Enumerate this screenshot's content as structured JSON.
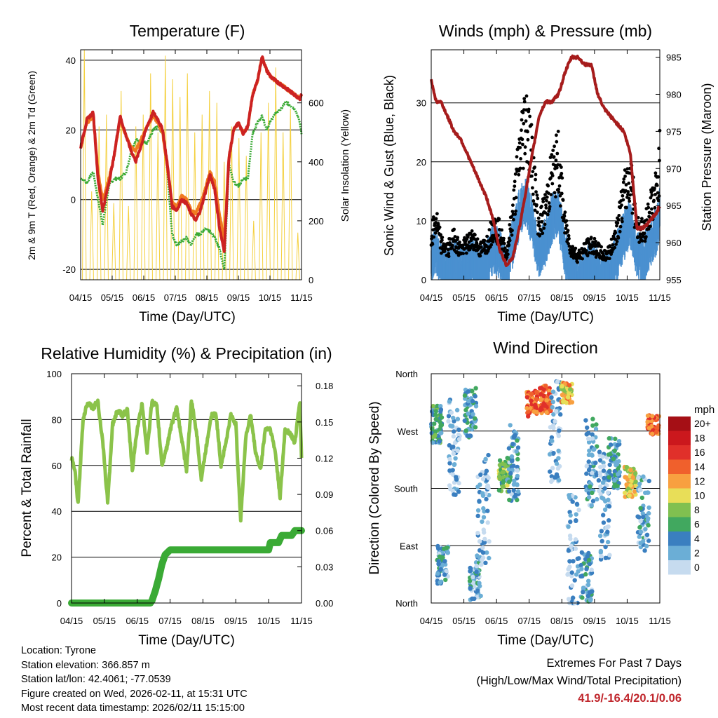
{
  "colors": {
    "temp_red": "#cc2222",
    "temp_orange": "#f07a20",
    "dewpoint_green": "#3aaa35",
    "solar_yellow": "#f4d03f",
    "wind_blue": "#4a90d0",
    "gust_black": "#000000",
    "pressure_maroon": "#a61c1c",
    "rh_green": "#8bc34a",
    "precip_green": "#3aaa35",
    "extremes_red": "#c0272d"
  },
  "chart_data": [
    {
      "id": "temperature",
      "type": "line",
      "title": "Temperature (F)",
      "xlabel": "Time (Day/UTC)",
      "ylabel_left": "2m & 9m T (Red, Orange) & 2m Td (Green)",
      "ylabel_right": "Solar Insolation (Yellow)",
      "x_ticks": [
        "04/15",
        "05/15",
        "06/15",
        "07/15",
        "08/15",
        "09/15",
        "10/15",
        "11/15"
      ],
      "ylim": [
        -23,
        43
      ],
      "y_ticks": [
        -20,
        0,
        20,
        40
      ],
      "y2lim": [
        0,
        780
      ],
      "y2_ticks": [
        0,
        200,
        400,
        600
      ],
      "x": [
        0,
        0.2,
        0.4,
        0.55,
        0.7,
        0.9,
        1.05,
        1.25,
        1.45,
        1.6,
        1.75,
        1.9,
        2.1,
        2.3,
        2.45,
        2.6,
        2.75,
        2.9,
        3.05,
        3.2,
        3.35,
        3.5,
        3.65,
        3.8,
        3.95,
        4.1,
        4.25,
        4.4,
        4.55,
        4.7,
        4.85,
        5.0,
        5.15,
        5.3,
        5.45,
        5.6,
        5.75,
        5.9,
        6.05,
        6.2,
        6.35,
        6.5,
        6.65,
        6.8,
        6.95,
        7.0
      ],
      "series": [
        {
          "name": "2m T",
          "color": "#cc2222",
          "values": [
            15,
            23,
            25,
            6,
            -3,
            5,
            12,
            24,
            18,
            14,
            11,
            15,
            21,
            25,
            23,
            20,
            10,
            -2,
            -3,
            0,
            -1,
            -4,
            -6,
            -3,
            2,
            7,
            3,
            -8,
            -15,
            12,
            20,
            22,
            19,
            21,
            30,
            34,
            41,
            37,
            35,
            34,
            33,
            32,
            31,
            30,
            29,
            30
          ]
        },
        {
          "name": "9m T",
          "color": "#f07a20",
          "values": [
            15,
            22,
            24,
            8,
            0,
            6,
            12,
            23,
            18,
            15,
            14,
            17,
            21,
            24,
            22,
            19,
            9,
            -1,
            -2,
            1,
            0,
            -3,
            -4,
            -1,
            3,
            8,
            5,
            -4,
            -12,
            12,
            20,
            22,
            19,
            21,
            30,
            34,
            41,
            37,
            35,
            34,
            33,
            32,
            31,
            30,
            29,
            30
          ]
        },
        {
          "name": "2m Td",
          "color": "#3aaa35",
          "values": [
            6,
            5,
            8,
            0,
            -7,
            4,
            6,
            6,
            8,
            14,
            17,
            17,
            16,
            20,
            21,
            19,
            8,
            -10,
            -13,
            -12,
            -11,
            -13,
            -10,
            -10,
            -8,
            -9,
            -11,
            -14,
            -20,
            10,
            5,
            4,
            6,
            6,
            19,
            22,
            24,
            20,
            23,
            25,
            26,
            28,
            27,
            26,
            22,
            19
          ]
        }
      ],
      "solar_peaks": [
        780,
        300,
        520,
        560,
        260,
        640,
        250,
        520,
        560,
        700,
        500,
        760,
        680,
        620,
        700,
        500,
        560,
        640,
        600,
        400,
        520,
        480,
        420,
        200,
        500,
        600,
        720,
        500,
        580,
        160
      ]
    },
    {
      "id": "winds",
      "type": "scatter",
      "title": "Winds (mph) & Pressure (mb)",
      "xlabel": "Time (Day/UTC)",
      "ylabel_left": "Sonic Wind & Gust (Blue, Black)",
      "ylabel_right": "Station Pressure (Maroon)",
      "x_ticks": [
        "04/15",
        "05/15",
        "06/15",
        "07/15",
        "08/15",
        "09/15",
        "10/15",
        "11/15"
      ],
      "ylim": [
        0,
        39
      ],
      "y_ticks": [
        0,
        10,
        20,
        30
      ],
      "y2lim": [
        955,
        986
      ],
      "y2_ticks": [
        955,
        960,
        965,
        970,
        975,
        980,
        985
      ],
      "x": [
        0,
        0.15,
        0.3,
        0.5,
        0.7,
        0.9,
        1.1,
        1.3,
        1.5,
        1.7,
        1.9,
        2.1,
        2.3,
        2.5,
        2.7,
        2.9,
        3.1,
        3.3,
        3.5,
        3.7,
        3.9,
        4.1,
        4.3,
        4.5,
        4.7,
        4.9,
        5.1,
        5.3,
        5.5,
        5.7,
        5.9,
        6.1,
        6.3,
        6.5,
        6.7,
        6.9,
        7.0
      ],
      "wind_values": [
        5,
        7,
        4,
        3,
        5,
        3,
        4,
        5,
        3,
        4,
        7,
        6,
        3,
        8,
        13,
        15,
        11,
        6,
        8,
        12,
        13,
        6,
        3,
        2,
        3,
        4,
        3,
        2,
        3,
        6,
        9,
        11,
        6,
        5,
        8,
        10,
        13
      ],
      "gust_values": [
        7,
        10,
        6,
        5,
        7,
        5,
        6,
        7,
        5,
        6,
        9,
        8,
        4,
        11,
        21,
        28,
        20,
        9,
        12,
        18,
        20,
        9,
        5,
        4,
        5,
        6,
        5,
        4,
        5,
        9,
        14,
        18,
        9,
        8,
        12,
        15,
        20
      ],
      "pressure_values": [
        982,
        979,
        979,
        977,
        975,
        974,
        972,
        970,
        968,
        966,
        963,
        959,
        957,
        958,
        962,
        967,
        972,
        977,
        979,
        979,
        980,
        983,
        985,
        985,
        984,
        984,
        980,
        978,
        977,
        976,
        975,
        972,
        962,
        962,
        963,
        964,
        965
      ]
    },
    {
      "id": "humidity",
      "type": "line",
      "title": "Relative Humidity (%) & Precipitation (in)",
      "xlabel": "Time (Day/UTC)",
      "ylabel_left": "Percent & Total Rainfall",
      "x_ticks": [
        "04/15",
        "05/15",
        "06/15",
        "07/15",
        "08/15",
        "09/15",
        "10/15",
        "11/15"
      ],
      "ylim": [
        0,
        100
      ],
      "y_ticks": [
        0,
        20,
        40,
        60,
        80,
        100
      ],
      "y2lim": [
        0,
        0.19
      ],
      "y2_ticks": [
        "0.00",
        "0.03",
        "0.06",
        "0.09",
        "0.12",
        "0.15",
        "0.18"
      ],
      "x": [
        0,
        0.1,
        0.2,
        0.35,
        0.5,
        0.65,
        0.8,
        0.95,
        1.1,
        1.25,
        1.4,
        1.55,
        1.7,
        1.85,
        2.0,
        2.15,
        2.3,
        2.45,
        2.6,
        2.75,
        2.9,
        3.05,
        3.2,
        3.35,
        3.5,
        3.65,
        3.8,
        3.95,
        4.1,
        4.25,
        4.4,
        4.55,
        4.7,
        4.85,
        5.0,
        5.15,
        5.3,
        5.45,
        5.6,
        5.75,
        5.9,
        6.05,
        6.2,
        6.35,
        6.5,
        6.65,
        6.8,
        6.95,
        7.0
      ],
      "rh_values": [
        63,
        58,
        43,
        80,
        88,
        85,
        88,
        70,
        44,
        78,
        84,
        82,
        84,
        58,
        76,
        87,
        66,
        88,
        86,
        60,
        68,
        78,
        85,
        72,
        58,
        88,
        75,
        54,
        68,
        82,
        82,
        60,
        70,
        82,
        78,
        36,
        72,
        82,
        66,
        58,
        76,
        76,
        66,
        46,
        76,
        74,
        70,
        88,
        63
      ],
      "precip_x": [
        0,
        2.4,
        2.45,
        2.55,
        2.65,
        2.75,
        2.85,
        3.0,
        4.3,
        4.4,
        5.5,
        6.0,
        6.05,
        6.3,
        6.4,
        6.7,
        6.8,
        7.0
      ],
      "precip_values": [
        0,
        0,
        0.002,
        0.01,
        0.02,
        0.032,
        0.04,
        0.044,
        0.044,
        0.044,
        0.044,
        0.044,
        0.05,
        0.05,
        0.056,
        0.056,
        0.06,
        0.06
      ]
    },
    {
      "id": "wind_direction",
      "type": "scatter",
      "title": "Wind Direction",
      "xlabel": "Time (Day/UTC)",
      "ylabel_left": "Direction (Colored By Speed)",
      "x_ticks": [
        "04/15",
        "05/15",
        "06/15",
        "07/15",
        "08/15",
        "09/15",
        "10/15",
        "11/15"
      ],
      "y_ticks": [
        "North",
        "East",
        "South",
        "West",
        "North"
      ],
      "ylim": [
        0,
        360
      ],
      "legend": {
        "title": "mph",
        "labels": [
          "20+",
          "18",
          "16",
          "14",
          "12",
          "10",
          "8",
          "6",
          "4",
          "2",
          "0"
        ],
        "colors": [
          "#a50f15",
          "#cb181d",
          "#e0302a",
          "#f0602c",
          "#f8a040",
          "#e8de58",
          "#80c050",
          "#41a85f",
          "#3a7fc0",
          "#6baed6",
          "#c6dbef"
        ]
      },
      "clusters": [
        {
          "x": 0.15,
          "dir": 280,
          "spread": 30,
          "speed": 5
        },
        {
          "x": 0.35,
          "dir": 60,
          "spread": 30,
          "speed": 3
        },
        {
          "x": 0.7,
          "dir": 240,
          "spread": 80,
          "speed": 2
        },
        {
          "x": 1.2,
          "dir": 300,
          "spread": 40,
          "speed": 4
        },
        {
          "x": 1.35,
          "dir": 40,
          "spread": 35,
          "speed": 3
        },
        {
          "x": 1.6,
          "dir": 150,
          "spread": 90,
          "speed": 2
        },
        {
          "x": 2.25,
          "dir": 200,
          "spread": 25,
          "speed": 7
        },
        {
          "x": 2.5,
          "dir": 220,
          "spread": 60,
          "speed": 3
        },
        {
          "x": 3.1,
          "dir": 313,
          "spread": 20,
          "speed": 14
        },
        {
          "x": 3.5,
          "dir": 320,
          "spread": 22,
          "speed": 14
        },
        {
          "x": 3.8,
          "dir": 270,
          "spread": 80,
          "speed": 2
        },
        {
          "x": 4.15,
          "dir": 330,
          "spread": 16,
          "speed": 11
        },
        {
          "x": 4.35,
          "dir": 70,
          "spread": 100,
          "speed": 2
        },
        {
          "x": 4.75,
          "dir": 40,
          "spread": 40,
          "speed": 3
        },
        {
          "x": 4.9,
          "dir": 220,
          "spread": 70,
          "speed": 3
        },
        {
          "x": 5.3,
          "dir": 150,
          "spread": 90,
          "speed": 2
        },
        {
          "x": 5.6,
          "dir": 220,
          "spread": 40,
          "speed": 4
        },
        {
          "x": 6.1,
          "dir": 190,
          "spread": 25,
          "speed": 10
        },
        {
          "x": 6.5,
          "dir": 140,
          "spread": 60,
          "speed": 3
        },
        {
          "x": 6.8,
          "dir": 280,
          "spread": 15,
          "speed": 14
        }
      ]
    }
  ],
  "footer": {
    "location": "Location: Tyrone",
    "elevation": "Station elevation: 366.857 m",
    "latlon": "Station lat/lon: 42.4061; -77.0539",
    "created": "Figure created on Wed, 2026-02-11, at 15:31 UTC",
    "recent": "Most recent data timestamp: 2026/02/11 15:15:00",
    "extremes_title": "Extremes For Past 7 Days",
    "extremes_subtitle": "(High/Low/Max Wind/Total Precipitation)",
    "extremes_values": "41.9/-16.4/20.1/0.06"
  }
}
